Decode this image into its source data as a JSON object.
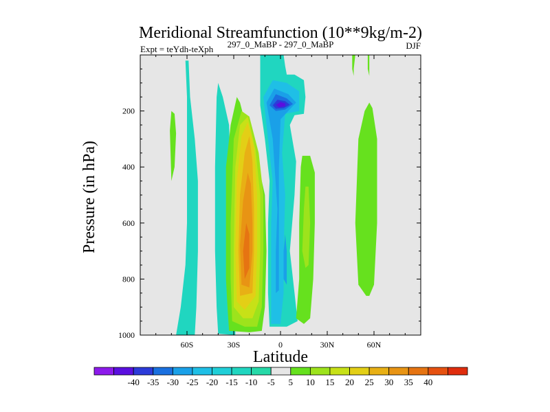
{
  "chart_data": {
    "type": "contour",
    "title": "Meridional Streamfunction (10**9kg/m-2)",
    "subtitle_left": "Expt = teYdh-teXph",
    "subtitle_center": "297_0_MaBP - 297_0_MaBP",
    "subtitle_right": "DJF",
    "xlabel": "Latitude",
    "ylabel": "Pressure (in hPa)",
    "xlim": [
      -90,
      90
    ],
    "ylim": [
      1000,
      0
    ],
    "x_ticks": [
      {
        "value": -60,
        "label": "60S"
      },
      {
        "value": -30,
        "label": "30S"
      },
      {
        "value": 0,
        "label": "0"
      },
      {
        "value": 30,
        "label": "30N"
      },
      {
        "value": 60,
        "label": "60N"
      }
    ],
    "y_ticks": [
      {
        "value": 200,
        "label": "200"
      },
      {
        "value": 400,
        "label": "400"
      },
      {
        "value": 600,
        "label": "600"
      },
      {
        "value": 800,
        "label": "800"
      },
      {
        "value": 1000,
        "label": "1000"
      }
    ],
    "background_color": "#e6e6e6",
    "levels": [
      -45,
      -40,
      -35,
      -30,
      -25,
      -20,
      -15,
      -10,
      -5,
      5,
      10,
      15,
      20,
      25,
      30,
      35,
      40,
      45
    ],
    "colors": [
      "#8c1aeb",
      "#5a0fdf",
      "#2c3bd9",
      "#1a70e0",
      "#1aa0e8",
      "#1fbfe6",
      "#20cfd8",
      "#20d6c0",
      "#26d9a8",
      "#e6e6e6",
      "#66e11e",
      "#9de31c",
      "#c7e117",
      "#e3cf16",
      "#e8b015",
      "#e89414",
      "#e67412",
      "#e65110",
      "#e02d0d"
    ],
    "colorbar_labels": [
      "-40",
      "-35",
      "-30",
      "-25",
      "-20",
      "-15",
      "-10",
      "-5",
      "5",
      "10",
      "15",
      "20",
      "25",
      "30",
      "35",
      "40"
    ],
    "features": [
      {
        "name": "cyan-band-far-south",
        "level_index": 7,
        "points": [
          [
            -67,
            1000
          ],
          [
            -64,
            900
          ],
          [
            -61,
            750
          ],
          [
            -60,
            600
          ],
          [
            -60,
            400
          ],
          [
            -60,
            150
          ],
          [
            -61,
            20
          ],
          [
            -59,
            20
          ],
          [
            -58,
            150
          ],
          [
            -55,
            300
          ],
          [
            -53,
            450
          ],
          [
            -53,
            700
          ],
          [
            -54,
            900
          ],
          [
            -55,
            1000
          ]
        ]
      },
      {
        "name": "green-band-south-small",
        "level_index": 10,
        "points": [
          [
            -71,
            270
          ],
          [
            -70,
            200
          ],
          [
            -68,
            210
          ],
          [
            -67,
            280
          ],
          [
            -68,
            400
          ],
          [
            -70,
            450
          ]
        ]
      },
      {
        "name": "cyan-band-southern-subtropics",
        "level_index": 7,
        "points": [
          [
            -40,
            995
          ],
          [
            -41,
            900
          ],
          [
            -42,
            700
          ],
          [
            -42,
            400
          ],
          [
            -41,
            150
          ],
          [
            -40,
            100
          ],
          [
            -37,
            150
          ],
          [
            -33,
            250
          ],
          [
            -31,
            600
          ],
          [
            -29,
            850
          ],
          [
            -29,
            1000
          ]
        ]
      },
      {
        "name": "green-cell-south",
        "level_index": 10,
        "points": [
          [
            -33,
            985
          ],
          [
            -34,
            900
          ],
          [
            -35,
            800
          ],
          [
            -35,
            600
          ],
          [
            -35,
            400
          ],
          [
            -32,
            250
          ],
          [
            -28,
            150
          ],
          [
            -26,
            170
          ],
          [
            -20,
            300
          ],
          [
            -14,
            400
          ],
          [
            -10,
            500
          ],
          [
            -9,
            700
          ],
          [
            -10,
            900
          ],
          [
            -12,
            985
          ],
          [
            -20,
            990
          ]
        ]
      },
      {
        "name": "yellow-green-cell-south",
        "level_index": 11,
        "points": [
          [
            -31,
            950
          ],
          [
            -32,
            800
          ],
          [
            -32,
            600
          ],
          [
            -30,
            300
          ],
          [
            -25,
            200
          ],
          [
            -20,
            220
          ],
          [
            -14,
            350
          ],
          [
            -11,
            500
          ],
          [
            -11,
            700
          ],
          [
            -12,
            900
          ],
          [
            -15,
            970
          ],
          [
            -23,
            970
          ]
        ]
      },
      {
        "name": "yellow-cell-south",
        "level_index": 12,
        "points": [
          [
            -30,
            900
          ],
          [
            -30,
            700
          ],
          [
            -29,
            400
          ],
          [
            -26,
            250
          ],
          [
            -21,
            220
          ],
          [
            -16,
            340
          ],
          [
            -13,
            500
          ],
          [
            -13,
            700
          ],
          [
            -14,
            880
          ],
          [
            -18,
            940
          ],
          [
            -24,
            940
          ]
        ]
      },
      {
        "name": "gold-cell-south",
        "level_index": 13,
        "points": [
          [
            -28,
            880
          ],
          [
            -29,
            700
          ],
          [
            -28,
            450
          ],
          [
            -25,
            290
          ],
          [
            -21,
            240
          ],
          [
            -17,
            330
          ],
          [
            -15,
            500
          ],
          [
            -15,
            700
          ],
          [
            -16,
            860
          ],
          [
            -23,
            910
          ]
        ]
      },
      {
        "name": "orange-cell-south",
        "level_index": 14,
        "points": [
          [
            -26,
            860
          ],
          [
            -27,
            700
          ],
          [
            -26,
            500
          ],
          [
            -23,
            350
          ],
          [
            -20,
            290
          ],
          [
            -18,
            380
          ],
          [
            -17,
            550
          ],
          [
            -17,
            700
          ],
          [
            -18,
            850
          ]
        ]
      },
      {
        "name": "dark-orange-cell-south",
        "level_index": 15,
        "points": [
          [
            -25,
            820
          ],
          [
            -26,
            680
          ],
          [
            -24,
            520
          ],
          [
            -21,
            420
          ],
          [
            -19,
            460
          ],
          [
            -18,
            600
          ],
          [
            -18,
            700
          ],
          [
            -20,
            830
          ]
        ]
      },
      {
        "name": "red-orange-core-south",
        "level_index": 16,
        "points": [
          [
            -23,
            800
          ],
          [
            -24,
            700
          ],
          [
            -22,
            600
          ],
          [
            -20,
            640
          ],
          [
            -20,
            760
          ]
        ]
      },
      {
        "name": "cyan-band-equatorial",
        "level_index": 7,
        "points": [
          [
            -7,
            970
          ],
          [
            -8,
            850
          ],
          [
            -8,
            600
          ],
          [
            -7,
            450
          ],
          [
            -10,
            300
          ],
          [
            -13,
            180
          ],
          [
            -13,
            0
          ],
          [
            2,
            0
          ],
          [
            3,
            40
          ],
          [
            4,
            70
          ],
          [
            9,
            70
          ],
          [
            15,
            90
          ],
          [
            16,
            150
          ],
          [
            15,
            210
          ],
          [
            9,
            215
          ],
          [
            6,
            250
          ],
          [
            10,
            380
          ],
          [
            9,
            500
          ],
          [
            6,
            700
          ],
          [
            9,
            850
          ],
          [
            11,
            950
          ],
          [
            4,
            970
          ]
        ]
      },
      {
        "name": "sky-blue-equatorial",
        "level_index": 5,
        "points": [
          [
            -6,
            960
          ],
          [
            -6,
            850
          ],
          [
            -6,
            600
          ],
          [
            -5,
            450
          ],
          [
            -8,
            300
          ],
          [
            -11,
            150
          ],
          [
            -5,
            90
          ],
          [
            4,
            100
          ],
          [
            12,
            130
          ],
          [
            12,
            200
          ],
          [
            3,
            210
          ],
          [
            1,
            350
          ],
          [
            3,
            500
          ],
          [
            2,
            700
          ],
          [
            2,
            850
          ],
          [
            0,
            960
          ]
        ]
      },
      {
        "name": "blue-upper-equatorial",
        "level_index": 4,
        "points": [
          [
            -3,
            850
          ],
          [
            -3,
            700
          ],
          [
            -2,
            550
          ],
          [
            -5,
            300
          ],
          [
            -9,
            170
          ],
          [
            -4,
            120
          ],
          [
            5,
            140
          ],
          [
            10,
            170
          ],
          [
            5,
            200
          ],
          [
            0,
            230
          ],
          [
            -1,
            400
          ],
          [
            -1,
            600
          ],
          [
            -1,
            840
          ]
        ]
      },
      {
        "name": "deeper-blue-upper",
        "level_index": 3,
        "points": [
          [
            -7,
            180
          ],
          [
            -3,
            140
          ],
          [
            4,
            155
          ],
          [
            8,
            175
          ],
          [
            3,
            195
          ],
          [
            -3,
            200
          ]
        ]
      },
      {
        "name": "blue-core-upper",
        "level_index": 2,
        "points": [
          [
            -5,
            180
          ],
          [
            -2,
            160
          ],
          [
            3,
            165
          ],
          [
            6,
            178
          ],
          [
            2,
            190
          ],
          [
            -3,
            192
          ]
        ]
      },
      {
        "name": "blue-core-upper-inner",
        "level_index": 1,
        "points": [
          [
            -3,
            178
          ],
          [
            0,
            168
          ],
          [
            3,
            173
          ],
          [
            3,
            183
          ],
          [
            -1,
            187
          ]
        ]
      },
      {
        "name": "blue-streak-lower",
        "level_index": 4,
        "points": [
          [
            2,
            800
          ],
          [
            2,
            700
          ],
          [
            3,
            640
          ],
          [
            4,
            700
          ],
          [
            4,
            820
          ]
        ]
      },
      {
        "name": "green-cell-equatorial-north",
        "level_index": 10,
        "points": [
          [
            10,
            940
          ],
          [
            12,
            800
          ],
          [
            12,
            600
          ],
          [
            13,
            400
          ],
          [
            14,
            360
          ],
          [
            19,
            360
          ],
          [
            22,
            420
          ],
          [
            22,
            600
          ],
          [
            21,
            800
          ],
          [
            19,
            940
          ],
          [
            15,
            960
          ]
        ]
      },
      {
        "name": "yellow-green-equatorial-north",
        "level_index": 11,
        "points": [
          [
            14,
            700
          ],
          [
            15,
            550
          ],
          [
            16,
            470
          ],
          [
            18,
            470
          ],
          [
            19,
            600
          ],
          [
            18,
            750
          ],
          [
            16,
            760
          ]
        ]
      },
      {
        "name": "green-band-far-north",
        "level_index": 10,
        "points": [
          [
            50,
            820
          ],
          [
            48,
            600
          ],
          [
            50,
            300
          ],
          [
            54,
            200
          ],
          [
            57,
            170
          ],
          [
            59,
            190
          ],
          [
            62,
            300
          ],
          [
            62,
            600
          ],
          [
            60,
            820
          ],
          [
            57,
            860
          ],
          [
            55,
            860
          ]
        ]
      },
      {
        "name": "green-sliver-north-top",
        "level_index": 10,
        "points": [
          [
            46,
            0
          ],
          [
            48,
            0
          ],
          [
            47,
            50
          ],
          [
            47,
            75
          ],
          [
            46,
            50
          ]
        ]
      },
      {
        "name": "green-sliver-north-top-2",
        "level_index": 10,
        "points": [
          [
            56,
            0
          ],
          [
            57,
            0
          ],
          [
            57,
            50
          ],
          [
            57,
            75
          ],
          [
            56,
            50
          ]
        ]
      },
      {
        "name": "cyan-sliver-north-top",
        "level_index": 7,
        "points": [
          [
            47,
            0
          ],
          [
            47,
            0
          ],
          [
            47,
            50
          ],
          [
            47,
            70
          ]
        ]
      }
    ]
  }
}
